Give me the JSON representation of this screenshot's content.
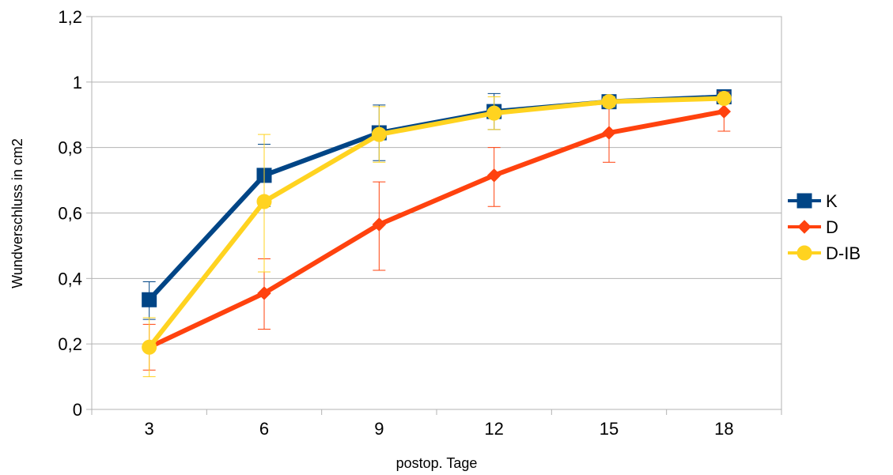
{
  "chart_data": {
    "type": "line",
    "title": "",
    "xlabel": "postop. Tage",
    "ylabel": "Wundverschluss in cm2",
    "categories": [
      "3",
      "6",
      "9",
      "12",
      "15",
      "18"
    ],
    "y_ticks": [
      "0",
      "0,2",
      "0,4",
      "0,6",
      "0,8",
      "1",
      "1,2"
    ],
    "ylim": [
      0,
      1.2
    ],
    "grid": true,
    "legend_position": "right",
    "series": [
      {
        "name": "K",
        "color": "#004586",
        "marker": "square",
        "values": [
          0.335,
          0.715,
          0.845,
          0.91,
          0.94,
          0.955
        ],
        "error_low": [
          0.275,
          0.62,
          0.76,
          0.855,
          0.925,
          0.945
        ],
        "error_high": [
          0.39,
          0.81,
          0.93,
          0.965,
          0.955,
          0.965
        ]
      },
      {
        "name": "D",
        "color": "#ff420e",
        "marker": "diamond",
        "values": [
          0.19,
          0.355,
          0.565,
          0.715,
          0.845,
          0.91
        ],
        "error_low": [
          0.12,
          0.245,
          0.425,
          0.62,
          0.755,
          0.85
        ],
        "error_high": [
          0.26,
          0.46,
          0.695,
          0.8,
          0.935,
          0.97
        ]
      },
      {
        "name": "D-IB",
        "color": "#ffd320",
        "marker": "circle",
        "values": [
          0.19,
          0.635,
          0.84,
          0.905,
          0.94,
          0.95
        ],
        "error_low": [
          0.1,
          0.42,
          0.755,
          0.855,
          0.925,
          0.94
        ],
        "error_high": [
          0.28,
          0.84,
          0.925,
          0.955,
          0.955,
          0.96
        ]
      }
    ]
  }
}
